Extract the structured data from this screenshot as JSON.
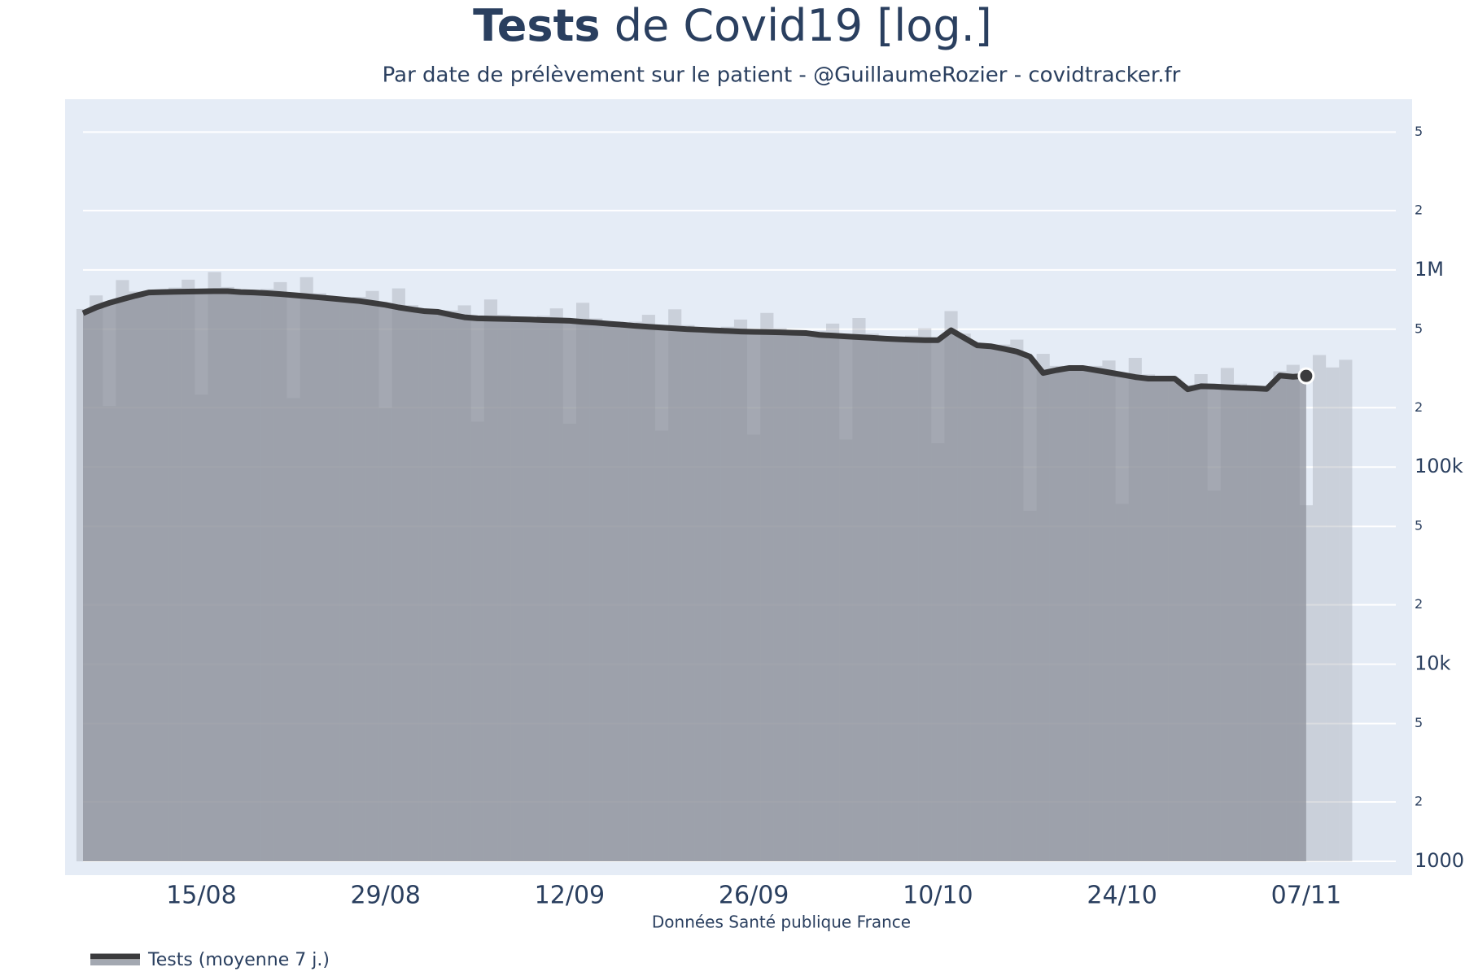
{
  "chart_data": {
    "type": "combo",
    "title_bold": "Tests",
    "title": "de Covid19 [log.]",
    "subtitle": "Par date de prélèvement sur le patient - @GuillaumeRozier - covidtracker.fr",
    "x_label": "Données Santé publique France",
    "log_y": true,
    "grid": true,
    "legend": "bottom-left",
    "categories": [
      "06/08",
      "07/08",
      "08/08",
      "09/08",
      "10/08",
      "11/08",
      "12/08",
      "13/08",
      "14/08",
      "15/08",
      "16/08",
      "17/08",
      "18/08",
      "19/08",
      "20/08",
      "21/08",
      "22/08",
      "23/08",
      "24/08",
      "25/08",
      "26/08",
      "27/08",
      "28/08",
      "29/08",
      "30/08",
      "31/08",
      "01/09",
      "02/09",
      "03/09",
      "04/09",
      "05/09",
      "06/09",
      "07/09",
      "08/09",
      "09/09",
      "10/09",
      "11/09",
      "12/09",
      "13/09",
      "14/09",
      "15/09",
      "16/09",
      "17/09",
      "18/09",
      "19/09",
      "20/09",
      "21/09",
      "22/09",
      "23/09",
      "24/09",
      "25/09",
      "26/09",
      "27/09",
      "28/09",
      "29/09",
      "30/09",
      "01/10",
      "02/10",
      "03/10",
      "04/10",
      "05/10",
      "06/10",
      "07/10",
      "08/10",
      "09/10",
      "10/10",
      "11/10",
      "12/10",
      "13/10",
      "14/10",
      "15/10",
      "16/10",
      "17/10",
      "18/10",
      "19/10",
      "20/10",
      "21/10",
      "22/10",
      "23/10",
      "24/10",
      "25/10",
      "26/10",
      "27/10",
      "28/10",
      "29/10",
      "30/10",
      "31/10",
      "01/11",
      "02/11",
      "03/11",
      "04/11",
      "05/11",
      "06/11",
      "07/11",
      "08/11",
      "09/11",
      "10/11"
    ],
    "series": [
      {
        "name": "Tests (moyenne 7 j.)",
        "type": "line",
        "color": "#3b3b3d",
        "values": [
          603000,
          645000,
          680000,
          710000,
          740000,
          768000,
          772000,
          774000,
          776000,
          778000,
          780000,
          780000,
          772000,
          768000,
          762000,
          754000,
          745000,
          735000,
          725000,
          715000,
          705000,
          695000,
          680000,
          665000,
          645000,
          630000,
          617000,
          612000,
          592000,
          575000,
          568000,
          566000,
          564000,
          562000,
          560000,
          557000,
          555000,
          552000,
          545000,
          540000,
          533000,
          527000,
          520000,
          515000,
          510000,
          505000,
          500000,
          497000,
          493000,
          490000,
          487000,
          485000,
          484000,
          482000,
          480000,
          478000,
          468000,
          464000,
          460000,
          456000,
          452000,
          448000,
          445000,
          442000,
          440000,
          440000,
          494000,
          452000,
          414000,
          410000,
          398000,
          385000,
          363000,
          300000,
          310000,
          318000,
          318000,
          310000,
          302000,
          294000,
          286000,
          281000,
          281000,
          281000,
          248000,
          257000,
          256000,
          254000,
          252000,
          251000,
          249000,
          291000,
          287000,
          290000,
          null,
          null,
          null
        ]
      },
      {
        "type": "bar",
        "color": "#a3a8b1",
        "values": [
          633000,
          742000,
          204000,
          888000,
          777000,
          768000,
          772000,
          813000,
          892000,
          233000,
          975000,
          819000,
          772000,
          768000,
          800000,
          867000,
          224000,
          919000,
          761000,
          715000,
          705000,
          730000,
          782000,
          200000,
          806000,
          662000,
          617000,
          612000,
          622000,
          661000,
          170000,
          708000,
          592000,
          562000,
          560000,
          585000,
          638000,
          166000,
          681000,
          567000,
          533000,
          527000,
          546000,
          592000,
          153000,
          631000,
          525000,
          497000,
          493000,
          515000,
          560000,
          146000,
          605000,
          506000,
          480000,
          478000,
          491000,
          534000,
          138000,
          570000,
          475000,
          448000,
          445000,
          464000,
          506000,
          132000,
          618000,
          475000,
          414000,
          410000,
          418000,
          443000,
          60000,
          375000,
          326000,
          318000,
          318000,
          326000,
          347000,
          65000,
          358000,
          295000,
          281000,
          281000,
          260000,
          296000,
          76000,
          318000,
          265000,
          251000,
          249000,
          306000,
          330000,
          64000,
          370000,
          320000,
          350000
        ]
      }
    ],
    "ylim": [
      1000,
      7000000
    ],
    "yticks": [
      1000,
      {
        "value": 2000,
        "label": "2"
      },
      {
        "value": 5000,
        "label": "5"
      },
      {
        "value": 10000,
        "label": "10k"
      },
      {
        "value": 20000,
        "label": "2"
      },
      {
        "value": 50000,
        "label": "5"
      },
      {
        "value": 100000,
        "label": "100k"
      },
      {
        "value": 200000,
        "label": "2"
      },
      {
        "value": 500000,
        "label": "5"
      },
      {
        "value": 1000000,
        "label": "1M"
      },
      {
        "value": 2000000,
        "label": "2"
      },
      {
        "value": 5000000,
        "label": "5"
      }
    ],
    "xticks": [
      "15/08",
      "29/08",
      "12/09",
      "26/09",
      "10/10",
      "24/10",
      "07/11"
    ]
  }
}
